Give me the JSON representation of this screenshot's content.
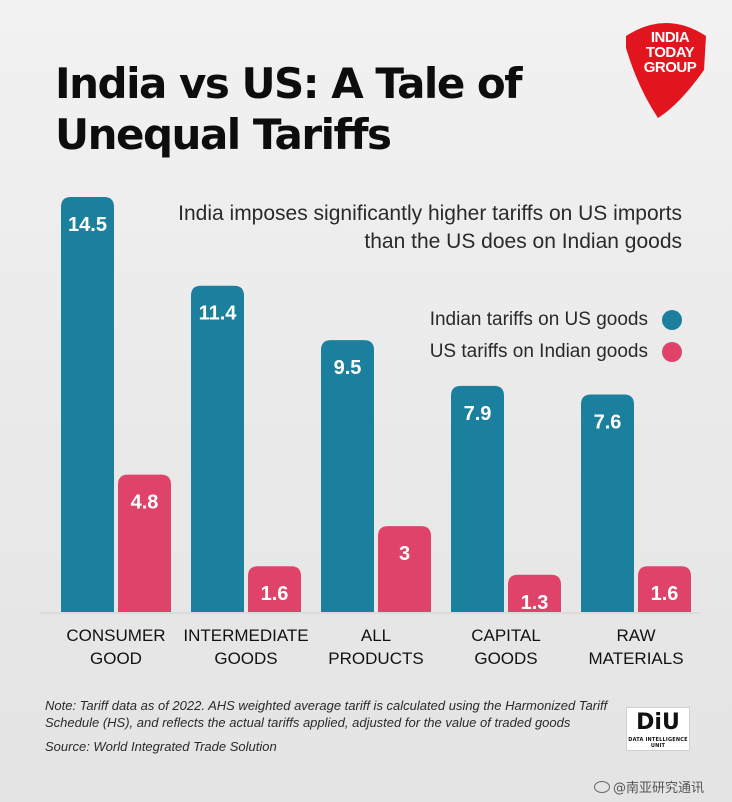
{
  "header": {
    "title_line1": "India vs US: A Tale of",
    "title_line2": "Unequal Tariffs",
    "brand_line1": "INDIA",
    "brand_line2": "TODAY",
    "brand_line3": "GROUP"
  },
  "colors": {
    "india": "#1b7f9e",
    "us": "#e0436a",
    "brand_red": "#e2141e"
  },
  "chart_data": {
    "type": "bar",
    "title": "India vs US: A Tale of Unequal Tariffs",
    "subtitle": "India imposes significantly higher tariffs on US imports than the US does on Indian goods",
    "categories": [
      [
        "CONSUMER",
        "GOOD"
      ],
      [
        "INTERMEDIATE",
        "GOODS"
      ],
      [
        "ALL",
        "PRODUCTS"
      ],
      [
        "CAPITAL",
        "GOODS"
      ],
      [
        "RAW",
        "MATERIALS"
      ]
    ],
    "series": [
      {
        "name": "Indian tariffs on US goods",
        "values": [
          14.5,
          11.4,
          9.5,
          7.9,
          7.6
        ],
        "labels": [
          "14.5",
          "11.4",
          "9.5",
          "7.9",
          "7.6"
        ]
      },
      {
        "name": "US tariffs on Indian goods",
        "values": [
          4.8,
          1.6,
          3,
          1.3,
          1.6
        ],
        "labels": [
          "4.8",
          "1.6",
          "3",
          "1.3",
          "1.6"
        ]
      }
    ],
    "xlabel": "",
    "ylabel": "",
    "ylim": [
      0,
      14.5
    ],
    "grid": false,
    "legend_position": "right"
  },
  "footer": {
    "note_line1": "Note: Tariff data as of 2022. AHS weighted average tariff is calculated using the Harmonized Tariff",
    "note_line2": "Schedule (HS), and reflects the actual tariffs applied, adjusted for the value of traded goods",
    "source": "Source: World Integrated Trade Solution",
    "diu_logo": "DiU",
    "diu_sub": "DATA INTELLIGENCE UNIT",
    "watermark": "@南亚研究通讯"
  }
}
